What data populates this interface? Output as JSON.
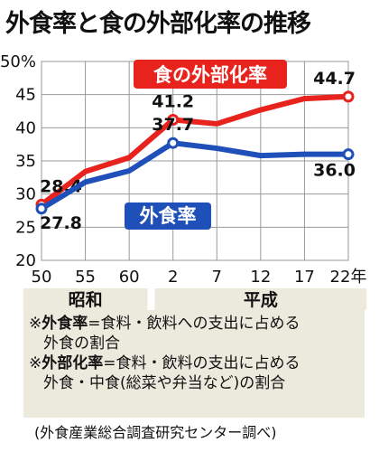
{
  "chart_data": {
    "type": "line",
    "title": "外食率と食の外部化率の推移",
    "y_unit": "%",
    "ylim": [
      20,
      50
    ],
    "y_ticks": [
      20,
      25,
      30,
      35,
      40,
      45,
      50
    ],
    "y_tick_labels": [
      "20",
      "25",
      "30",
      "35",
      "40",
      "45",
      "50%"
    ],
    "categories": [
      "50",
      "55",
      "60",
      "2",
      "7",
      "12",
      "17",
      "22年"
    ],
    "eras": [
      {
        "label": "昭和",
        "from": 0,
        "to": 2
      },
      {
        "label": "平成",
        "from": 3,
        "to": 7
      }
    ],
    "grid": true,
    "series": [
      {
        "name": "食の外部化率",
        "color": "#e8221c",
        "label_color": "#e8221c",
        "values": [
          28.4,
          33.4,
          35.5,
          41.2,
          40.6,
          42.7,
          44.4,
          44.7
        ],
        "annotated": [
          {
            "index": 0,
            "text": "28.4"
          },
          {
            "index": 3,
            "text": "41.2"
          },
          {
            "index": 7,
            "text": "44.7"
          }
        ]
      },
      {
        "name": "外食率",
        "color": "#1f4fb8",
        "label_color": "#1f4fb8",
        "values": [
          27.8,
          31.8,
          33.5,
          37.7,
          36.9,
          35.8,
          36.0,
          36.0
        ],
        "annotated": [
          {
            "index": 0,
            "text": "27.8"
          },
          {
            "index": 3,
            "text": "37.7"
          },
          {
            "index": 7,
            "text": "36.0"
          }
        ]
      }
    ]
  },
  "notes": [
    {
      "mark": "※",
      "term": "外食率",
      "text": "=食料・飲料への支出に占める",
      "cont": "外食の割合"
    },
    {
      "mark": "※",
      "term": "外部化率",
      "text": "=食料・飲料の支出に占める",
      "cont": "外食・中食(総菜や弁当など)の割合"
    }
  ],
  "source": "(外食産業総合調査研究センター調べ)"
}
